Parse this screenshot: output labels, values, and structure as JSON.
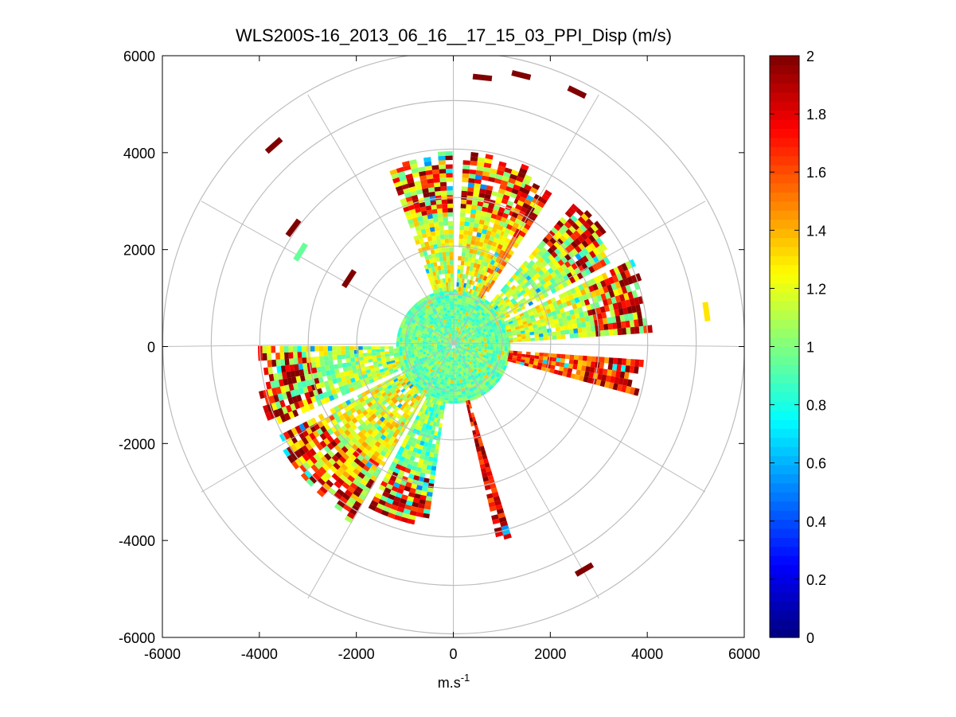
{
  "chart_data": {
    "type": "heatmap",
    "subtype": "polar-ppi",
    "title": "WLS200S-16_2013_06_16__17_15_03_PPI_Disp (m/s)",
    "xlabel": "m.s",
    "xlabel_superscript": "-1",
    "ylabel": "",
    "xlim": [
      -6000,
      6000
    ],
    "ylim": [
      -6000,
      6000
    ],
    "xticks": [
      -6000,
      -4000,
      -2000,
      0,
      2000,
      4000,
      6000
    ],
    "yticks": [
      -6000,
      -4000,
      -2000,
      0,
      2000,
      4000,
      6000
    ],
    "xtick_labels": [
      "-6000",
      "-4000",
      "-2000",
      "0",
      "2000",
      "4000",
      "6000"
    ],
    "ytick_labels": [
      "-6000",
      "-4000",
      "-2000",
      "0",
      "2000",
      "4000",
      "6000"
    ],
    "polar_grid": {
      "ring_radii": [
        1000,
        2000,
        3000,
        4000,
        5000,
        6000
      ],
      "spoke_angles_deg": [
        0,
        30,
        60,
        90,
        120,
        150,
        180,
        210,
        240,
        270,
        300,
        330
      ]
    },
    "colorbar": {
      "colormap": "jet",
      "range": [
        0,
        2
      ],
      "ticks": [
        0,
        0.2,
        0.4,
        0.6,
        0.8,
        1,
        1.2,
        1.4,
        1.6,
        1.8,
        2
      ],
      "tick_labels": [
        "0",
        "0.2",
        "0.4",
        "0.6",
        "0.8",
        "1",
        "1.2",
        "1.4",
        "1.6",
        "1.8",
        "2"
      ]
    },
    "inner_disc": {
      "r_max": 1150,
      "typical_value": 0.95
    },
    "sectors": [
      {
        "name": "north-northwest",
        "az_start": 340,
        "az_end": 358,
        "r_start": 1150,
        "r_end": 4050,
        "base": 1.15,
        "edge_high": true
      },
      {
        "name": "north-northeast",
        "az_start": 3,
        "az_end": 23,
        "r_start": 1150,
        "r_end": 4050,
        "base": 1.2,
        "edge_high": true
      },
      {
        "name": "northeast-outer",
        "az_start": 24,
        "az_end": 31,
        "r_start": 1150,
        "r_end": 3750,
        "base": 1.35,
        "edge_high": true
      },
      {
        "name": "east-northeast",
        "az_start": 40,
        "az_end": 60,
        "r_start": 1150,
        "r_end": 3950,
        "base": 1.1,
        "edge_high": true
      },
      {
        "name": "east",
        "az_start": 64,
        "az_end": 84,
        "r_start": 1150,
        "r_end": 4150,
        "base": 1.15,
        "edge_high": true
      },
      {
        "name": "east-southeast",
        "az_start": 94,
        "az_end": 104,
        "r_start": 1150,
        "r_end": 4000,
        "base": 1.6,
        "edge_high": true
      },
      {
        "name": "south-southeast-narrow",
        "az_start": 163,
        "az_end": 167,
        "r_start": 1150,
        "r_end": 4050,
        "base": 1.8,
        "edge_high": true
      },
      {
        "name": "south-southwest",
        "az_start": 188,
        "az_end": 206,
        "r_start": 1150,
        "r_end": 3800,
        "base": 1.0,
        "edge_high": true
      },
      {
        "name": "southwest",
        "az_start": 210,
        "az_end": 241,
        "r_start": 1150,
        "r_end": 4250,
        "base": 1.2,
        "edge_high": true
      },
      {
        "name": "west",
        "az_start": 246,
        "az_end": 270,
        "r_start": 1150,
        "r_end": 4100,
        "base": 1.1,
        "edge_high": true
      }
    ],
    "isolated_marks": [
      {
        "x": 5220,
        "y": 720,
        "value": 1.3
      },
      {
        "x": -3700,
        "y": 4150,
        "value": 2
      },
      {
        "x": -3300,
        "y": 2450,
        "value": 2
      },
      {
        "x": -3150,
        "y": 1950,
        "value": 0.95
      },
      {
        "x": 600,
        "y": 5550,
        "value": 2
      },
      {
        "x": 1400,
        "y": 5600,
        "value": 2
      },
      {
        "x": 2550,
        "y": 5250,
        "value": 2
      },
      {
        "x": 2700,
        "y": -4600,
        "value": 2
      },
      {
        "x": -2150,
        "y": 1400,
        "value": 2
      }
    ]
  }
}
